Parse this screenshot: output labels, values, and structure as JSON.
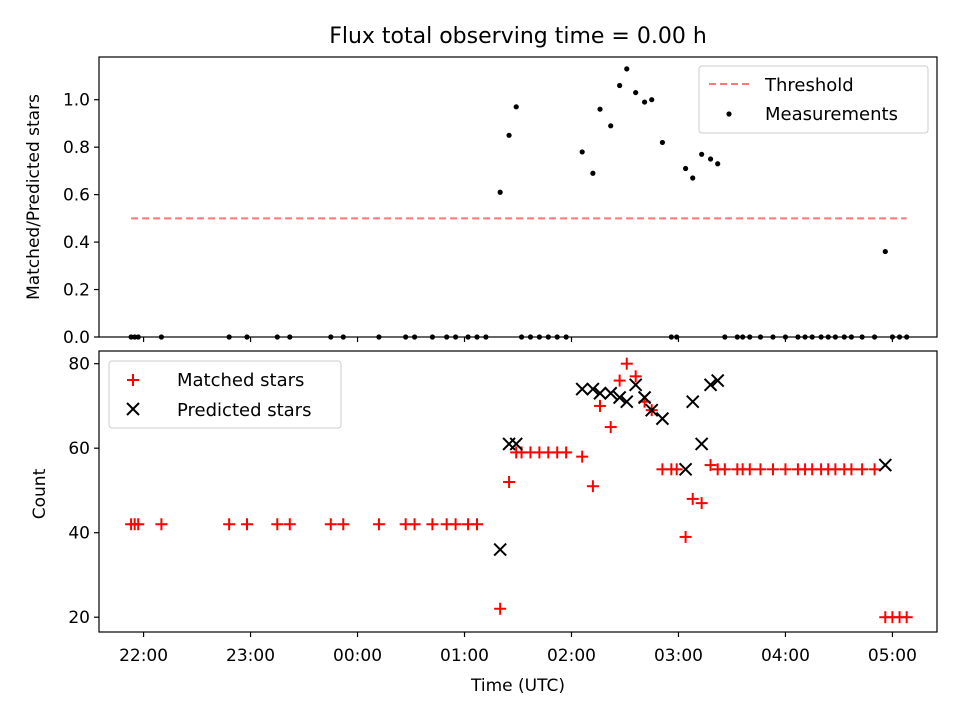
{
  "title": "Flux total observing time = 0.00 h",
  "chart_data": [
    {
      "type": "scatter",
      "ylabel": "Matched/Predicted stars",
      "ylim": [
        0,
        1.18
      ],
      "yticks": [
        0.0,
        0.2,
        0.4,
        0.6,
        0.8,
        1.0
      ],
      "ytick_labels": [
        "0.0",
        "0.2",
        "0.4",
        "0.6",
        "0.8",
        "1.0"
      ],
      "legend_position": "top-right",
      "threshold": {
        "name": "Threshold",
        "value": 0.5,
        "x_start": "21:53",
        "x_end": "05:08",
        "color": "#ff7777",
        "style": "dashed"
      },
      "series": [
        {
          "name": "Measurements",
          "marker": "dot",
          "color": "#000000",
          "points": [
            [
              "21:53",
              0
            ],
            [
              "21:55",
              0
            ],
            [
              "21:57",
              0
            ],
            [
              "22:10",
              0
            ],
            [
              "22:48",
              0
            ],
            [
              "22:58",
              0
            ],
            [
              "23:15",
              0
            ],
            [
              "23:22",
              0
            ],
            [
              "23:45",
              0
            ],
            [
              "23:52",
              0
            ],
            [
              "00:12",
              0
            ],
            [
              "00:27",
              0
            ],
            [
              "00:32",
              0
            ],
            [
              "00:42",
              0
            ],
            [
              "00:50",
              0
            ],
            [
              "00:55",
              0
            ],
            [
              "01:02",
              0
            ],
            [
              "01:07",
              0
            ],
            [
              "01:12",
              0
            ],
            [
              "01:20",
              0.61
            ],
            [
              "01:25",
              0.85
            ],
            [
              "01:29",
              0.97
            ],
            [
              "01:32",
              0
            ],
            [
              "01:37",
              0
            ],
            [
              "01:42",
              0
            ],
            [
              "01:47",
              0
            ],
            [
              "01:52",
              0
            ],
            [
              "01:57",
              0
            ],
            [
              "02:06",
              0.78
            ],
            [
              "02:12",
              0.69
            ],
            [
              "02:16",
              0.96
            ],
            [
              "02:22",
              0.89
            ],
            [
              "02:27",
              1.06
            ],
            [
              "02:31",
              1.13
            ],
            [
              "02:36",
              1.03
            ],
            [
              "02:41",
              0.99
            ],
            [
              "02:45",
              1.0
            ],
            [
              "02:51",
              0.82
            ],
            [
              "02:56",
              0
            ],
            [
              "02:59",
              0
            ],
            [
              "03:04",
              0.71
            ],
            [
              "03:08",
              0.67
            ],
            [
              "03:13",
              0.77
            ],
            [
              "03:18",
              0.75
            ],
            [
              "03:22",
              0.73
            ],
            [
              "03:26",
              0
            ],
            [
              "03:33",
              0
            ],
            [
              "03:36",
              0
            ],
            [
              "03:40",
              0
            ],
            [
              "03:46",
              0
            ],
            [
              "03:53",
              0
            ],
            [
              "04:00",
              0
            ],
            [
              "04:07",
              0
            ],
            [
              "04:11",
              0
            ],
            [
              "04:15",
              0
            ],
            [
              "04:20",
              0
            ],
            [
              "04:24",
              0
            ],
            [
              "04:28",
              0
            ],
            [
              "04:33",
              0
            ],
            [
              "04:37",
              0
            ],
            [
              "04:43",
              0
            ],
            [
              "04:50",
              0
            ],
            [
              "04:56",
              0.36
            ],
            [
              "05:00",
              0
            ],
            [
              "05:04",
              0
            ],
            [
              "05:08",
              0
            ]
          ]
        }
      ]
    },
    {
      "type": "scatter",
      "xlabel": "Time (UTC)",
      "ylabel": "Count",
      "xlim": [
        "21:35",
        "05:25"
      ],
      "xticks": [
        "22:00",
        "23:00",
        "00:00",
        "01:00",
        "02:00",
        "03:00",
        "04:00",
        "05:00"
      ],
      "ylim": [
        16.5,
        83
      ],
      "yticks": [
        20,
        40,
        60,
        80
      ],
      "ytick_labels": [
        "20",
        "40",
        "60",
        "80"
      ],
      "legend_position": "top-left",
      "series": [
        {
          "name": "Matched stars",
          "marker": "plus",
          "color": "#ff0000",
          "points": [
            [
              "21:53",
              42
            ],
            [
              "21:55",
              42
            ],
            [
              "21:57",
              42
            ],
            [
              "22:10",
              42
            ],
            [
              "22:48",
              42
            ],
            [
              "22:58",
              42
            ],
            [
              "23:15",
              42
            ],
            [
              "23:22",
              42
            ],
            [
              "23:45",
              42
            ],
            [
              "23:52",
              42
            ],
            [
              "00:12",
              42
            ],
            [
              "00:27",
              42
            ],
            [
              "00:32",
              42
            ],
            [
              "00:42",
              42
            ],
            [
              "00:50",
              42
            ],
            [
              "00:55",
              42
            ],
            [
              "01:02",
              42
            ],
            [
              "01:07",
              42
            ],
            [
              "01:20",
              22
            ],
            [
              "01:25",
              52
            ],
            [
              "01:29",
              59
            ],
            [
              "01:32",
              59
            ],
            [
              "01:37",
              59
            ],
            [
              "01:42",
              59
            ],
            [
              "01:47",
              59
            ],
            [
              "01:52",
              59
            ],
            [
              "01:57",
              59
            ],
            [
              "02:06",
              58
            ],
            [
              "02:12",
              51
            ],
            [
              "02:16",
              70
            ],
            [
              "02:22",
              65
            ],
            [
              "02:27",
              76
            ],
            [
              "02:31",
              80
            ],
            [
              "02:36",
              77
            ],
            [
              "02:41",
              71
            ],
            [
              "02:45",
              69
            ],
            [
              "02:51",
              55
            ],
            [
              "02:56",
              55
            ],
            [
              "02:59",
              55
            ],
            [
              "03:04",
              39
            ],
            [
              "03:08",
              48
            ],
            [
              "03:13",
              47
            ],
            [
              "03:18",
              56
            ],
            [
              "03:22",
              55
            ],
            [
              "03:26",
              55
            ],
            [
              "03:33",
              55
            ],
            [
              "03:36",
              55
            ],
            [
              "03:40",
              55
            ],
            [
              "03:46",
              55
            ],
            [
              "03:53",
              55
            ],
            [
              "04:00",
              55
            ],
            [
              "04:07",
              55
            ],
            [
              "04:11",
              55
            ],
            [
              "04:15",
              55
            ],
            [
              "04:20",
              55
            ],
            [
              "04:24",
              55
            ],
            [
              "04:28",
              55
            ],
            [
              "04:33",
              55
            ],
            [
              "04:37",
              55
            ],
            [
              "04:43",
              55
            ],
            [
              "04:50",
              55
            ],
            [
              "04:56",
              20
            ],
            [
              "05:00",
              20
            ],
            [
              "05:04",
              20
            ],
            [
              "05:08",
              20
            ]
          ]
        },
        {
          "name": "Predicted stars",
          "marker": "x",
          "color": "#000000",
          "points": [
            [
              "01:20",
              36
            ],
            [
              "01:25",
              61
            ],
            [
              "01:29",
              61
            ],
            [
              "02:06",
              74
            ],
            [
              "02:12",
              74
            ],
            [
              "02:16",
              73
            ],
            [
              "02:22",
              73
            ],
            [
              "02:27",
              72
            ],
            [
              "02:31",
              71
            ],
            [
              "02:36",
              75
            ],
            [
              "02:41",
              72
            ],
            [
              "02:45",
              69
            ],
            [
              "02:51",
              67
            ],
            [
              "03:04",
              55
            ],
            [
              "03:08",
              71
            ],
            [
              "03:13",
              61
            ],
            [
              "03:18",
              75
            ],
            [
              "03:22",
              76
            ],
            [
              "04:56",
              56
            ]
          ]
        }
      ]
    }
  ]
}
